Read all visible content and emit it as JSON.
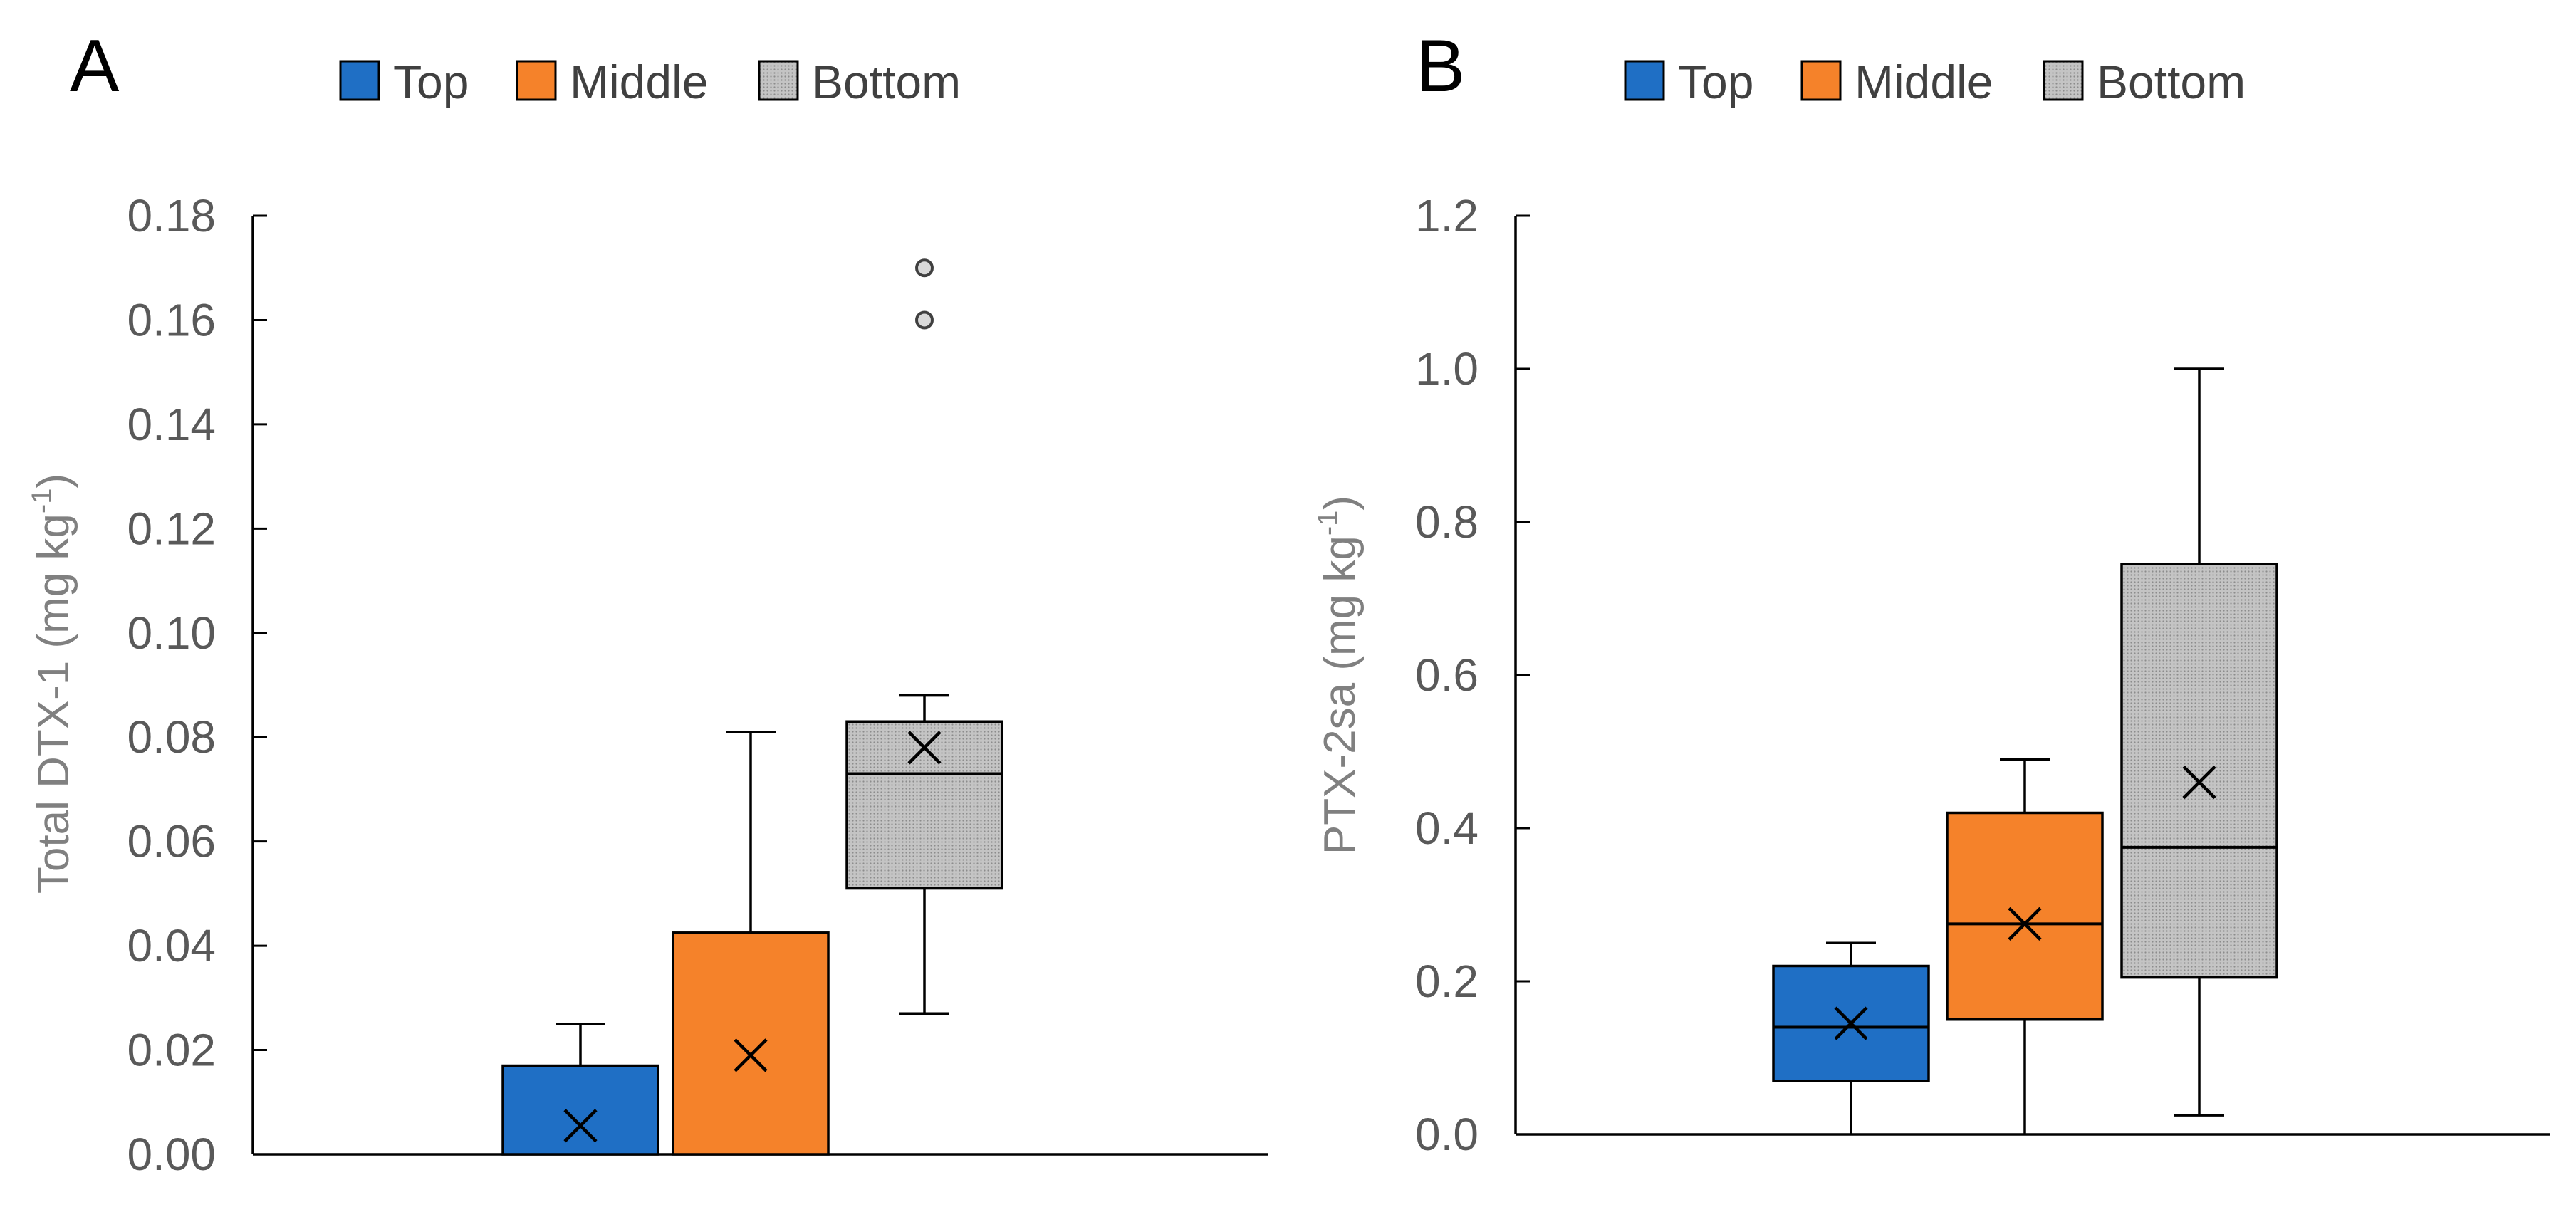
{
  "chart_data": [
    {
      "type": "box",
      "panel_label": "A",
      "ylabel": "Total DTX-1  (mg kg",
      "ylabel_sup": "-1",
      "ylabel_close": ")",
      "ylim": [
        0,
        0.18
      ],
      "ytick_values": [
        0,
        0.02,
        0.04,
        0.06,
        0.08,
        0.1,
        0.12,
        0.14,
        0.16,
        0.18
      ],
      "ytick_labels": [
        "0.00",
        "0.02",
        "0.04",
        "0.06",
        "0.08",
        "0.10",
        "0.12",
        "0.14",
        "0.16",
        "0.18"
      ],
      "legend": [
        "Top",
        "Middle",
        "Bottom"
      ],
      "series": [
        {
          "name": "Top",
          "color": "#1f6fc5",
          "pattern": "solid",
          "q1": 0.0,
          "median": 0.0,
          "q3": 0.017,
          "whisker_low": 0.0,
          "whisker_high": 0.025,
          "mean": 0.0055,
          "outliers": []
        },
        {
          "name": "Middle",
          "color": "#f5822a",
          "pattern": "solid",
          "q1": 0.0,
          "median": 0.0,
          "q3": 0.0425,
          "whisker_low": 0.0,
          "whisker_high": 0.081,
          "mean": 0.019,
          "outliers": []
        },
        {
          "name": "Bottom",
          "color": "#bfbfbf",
          "pattern": "dotted",
          "q1": 0.051,
          "median": 0.073,
          "q3": 0.083,
          "whisker_low": 0.027,
          "whisker_high": 0.088,
          "mean": 0.078,
          "outliers": [
            0.16,
            0.17
          ]
        }
      ]
    },
    {
      "type": "box",
      "panel_label": "B",
      "ylabel": "PTX-2sa (mg kg",
      "ylabel_sup": "-1",
      "ylabel_close": ")",
      "ylim": [
        0,
        1.2
      ],
      "ytick_values": [
        0,
        0.2,
        0.4,
        0.6,
        0.8,
        1.0,
        1.2
      ],
      "ytick_labels": [
        "0.0",
        "0.2",
        "0.4",
        "0.6",
        "0.8",
        "1.0",
        "1.2"
      ],
      "legend": [
        "Top",
        "Middle",
        "Bottom"
      ],
      "series": [
        {
          "name": "Top",
          "color": "#1f6fc5",
          "pattern": "solid",
          "q1": 0.07,
          "median": 0.14,
          "q3": 0.22,
          "whisker_low": 0.0,
          "whisker_high": 0.25,
          "mean": 0.145,
          "outliers": []
        },
        {
          "name": "Middle",
          "color": "#f5822a",
          "pattern": "solid",
          "q1": 0.15,
          "median": 0.275,
          "q3": 0.42,
          "whisker_low": 0.0,
          "whisker_high": 0.49,
          "mean": 0.275,
          "outliers": []
        },
        {
          "name": "Bottom",
          "color": "#bfbfbf",
          "pattern": "dotted",
          "q1": 0.205,
          "median": 0.375,
          "q3": 0.745,
          "whisker_low": 0.025,
          "whisker_high": 1.0,
          "mean": 0.46,
          "outliers": []
        }
      ]
    }
  ]
}
